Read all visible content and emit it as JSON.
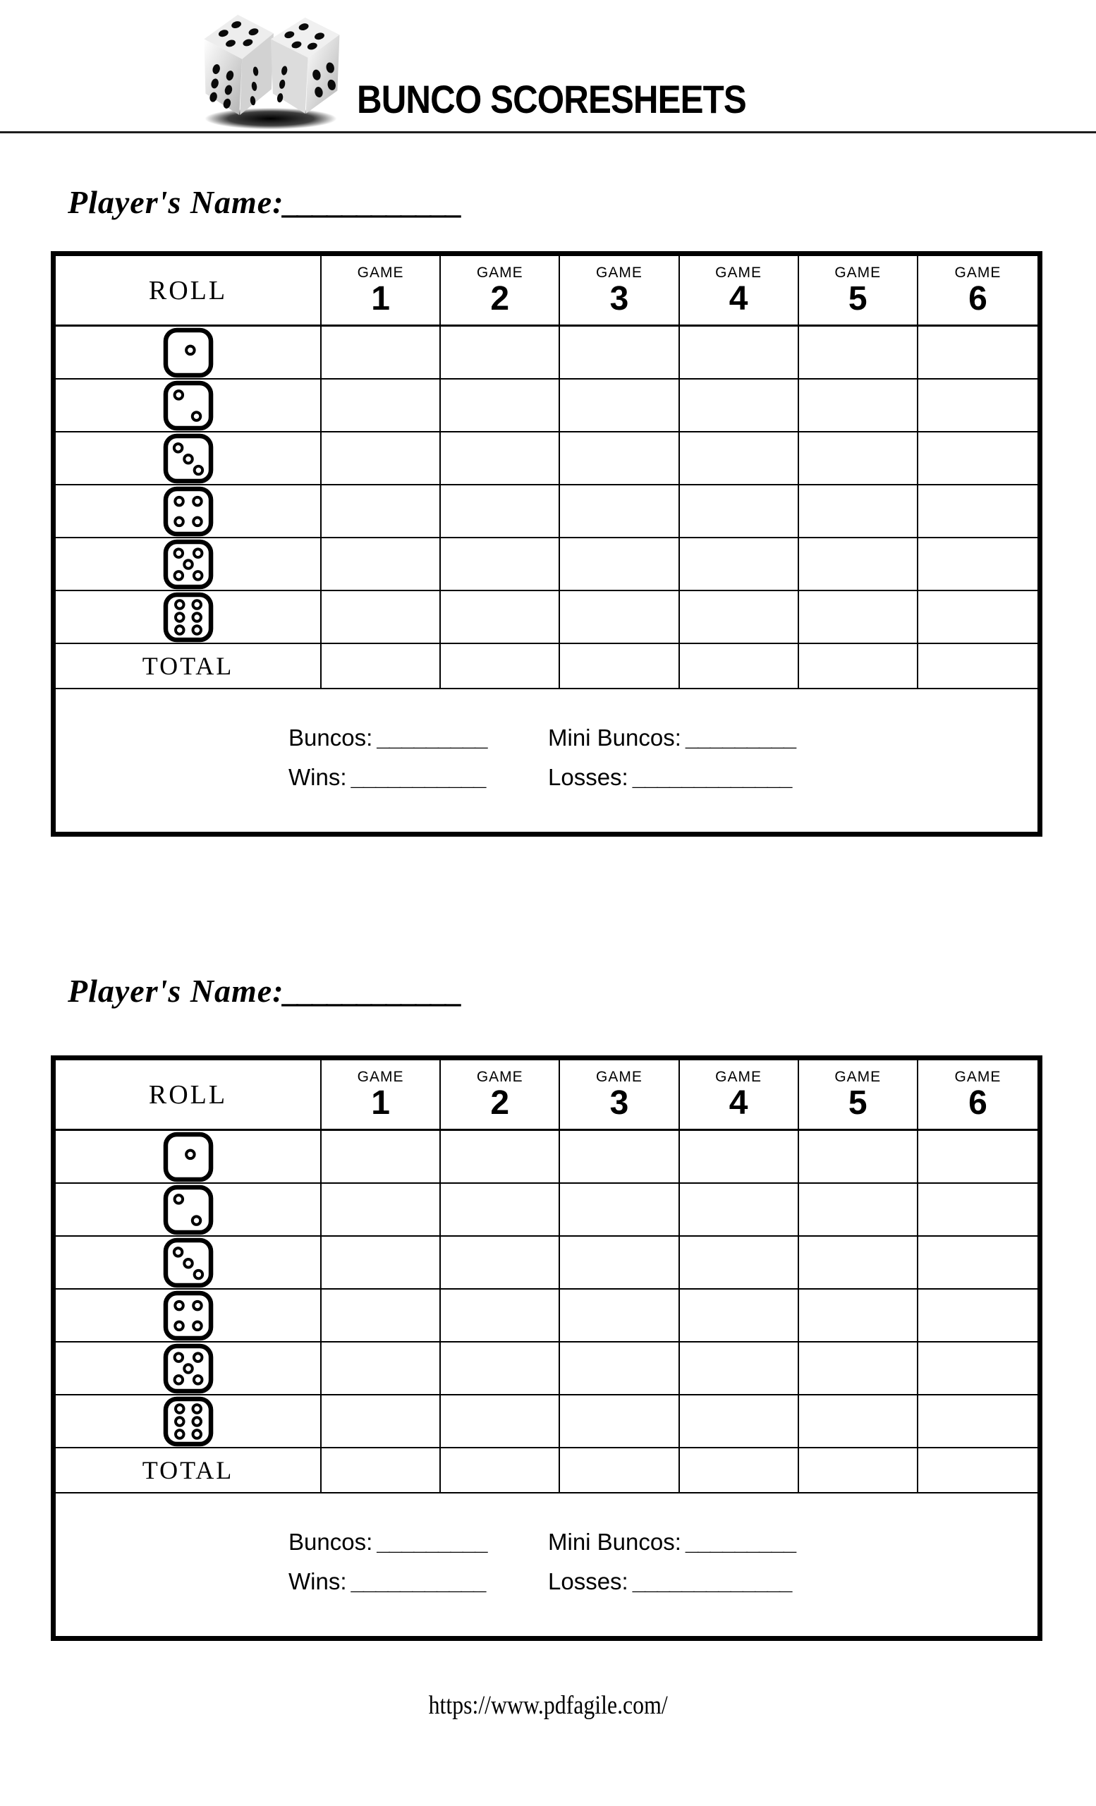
{
  "header": {
    "title": "BUNCO SCORESHEETS",
    "logo": "two-dice-icon"
  },
  "sheets": [
    {
      "player_name_label": "Player's Name:",
      "player_name_blank": "____________",
      "table": {
        "roll_header": "ROLL",
        "game_label": "GAME",
        "game_numbers": [
          "1",
          "2",
          "3",
          "4",
          "5",
          "6"
        ],
        "dice": [
          "1",
          "2",
          "3",
          "4",
          "5",
          "6"
        ],
        "total_label": "TOTAL"
      },
      "stats": {
        "buncos_label": "Buncos:",
        "buncos_blank": "_________",
        "mini_buncos_label": "Mini Buncos:",
        "mini_buncos_blank": "_________",
        "wins_label": "Wins:",
        "wins_blank": "___________",
        "losses_label": "Losses:",
        "losses_blank": "_____________"
      }
    },
    {
      "player_name_label": "Player's Name:",
      "player_name_blank": "____________",
      "table": {
        "roll_header": "ROLL",
        "game_label": "GAME",
        "game_numbers": [
          "1",
          "2",
          "3",
          "4",
          "5",
          "6"
        ],
        "dice": [
          "1",
          "2",
          "3",
          "4",
          "5",
          "6"
        ],
        "total_label": "TOTAL"
      },
      "stats": {
        "buncos_label": "Buncos:",
        "buncos_blank": "_________",
        "mini_buncos_label": "Mini Buncos:",
        "mini_buncos_blank": "_________",
        "wins_label": "Wins:",
        "wins_blank": "___________",
        "losses_label": "Losses:",
        "losses_blank": "_____________"
      }
    }
  ],
  "footer": {
    "url": "https://www.pdfagile.com/"
  }
}
